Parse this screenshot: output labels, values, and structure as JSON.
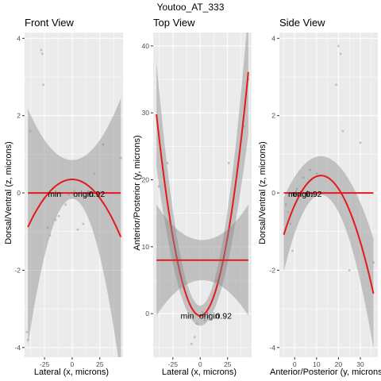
{
  "title": "Youtoo_AT_333",
  "colors": {
    "panel_bg": "#ebebeb",
    "grid": "#ffffff",
    "fit_line": "#e41a1c",
    "ribbon": "#8c8c8c",
    "points": "#9e9e9e",
    "text": "#000000",
    "axis_text": "#4d4d4d"
  },
  "chart_data": [
    {
      "type": "scatter",
      "title": "Front View",
      "xlabel": "Lateral (x, microns)",
      "ylabel": "Dorsal/Ventral (z, microns)",
      "xlim": [
        -43,
        46
      ],
      "ylim": [
        -4.25,
        4.15
      ],
      "xticks": [
        -25,
        0,
        25
      ],
      "yticks": [
        -4,
        -2,
        0,
        2,
        4
      ],
      "points": [
        [
          -28,
          3.7
        ],
        [
          -27,
          3.6
        ],
        [
          -26,
          2.8
        ],
        [
          -38,
          1.6
        ],
        [
          -41,
          -3.6
        ],
        [
          -40,
          -3.8
        ],
        [
          -22,
          -0.9
        ],
        [
          -15,
          -0.7
        ],
        [
          -12,
          -0.6
        ],
        [
          -6,
          -0.3
        ],
        [
          -3,
          -0.05
        ],
        [
          0,
          0.0
        ],
        [
          2,
          0.05
        ],
        [
          5,
          -0.95
        ],
        [
          10,
          -0.8
        ],
        [
          20,
          0.5
        ],
        [
          28,
          1.25
        ],
        [
          44,
          0.9
        ],
        [
          -20,
          -1.1
        ],
        [
          8,
          0.3
        ]
      ],
      "fits": [
        {
          "kind": "quadratic",
          "coef": [
            0.35,
            0,
            -0.00077
          ],
          "x_range": [
            -40,
            44
          ],
          "band": [
            0.5,
            0.0016
          ]
        },
        {
          "kind": "constant",
          "value": 0,
          "x_range": [
            -40,
            44
          ]
        }
      ],
      "annotations": [
        {
          "text": "min",
          "x": -22,
          "y": -0.02
        },
        {
          "text": "origin",
          "x": 1,
          "y": -0.02
        },
        {
          "text": "0.92",
          "x": 15,
          "y": -0.02
        }
      ]
    },
    {
      "type": "scatter",
      "title": "Top View",
      "xlabel": "Lateral (x, microns)",
      "ylabel": "Anterior/Posterior (y, microns)",
      "xlim": [
        -43,
        47
      ],
      "ylim": [
        -6.5,
        42
      ],
      "xticks": [
        -25,
        0,
        25
      ],
      "yticks": [
        0,
        10,
        20,
        30,
        40
      ],
      "points": [
        [
          -38,
          19
        ],
        [
          -30,
          22.5
        ],
        [
          -8,
          -4.5
        ],
        [
          -5,
          -3.5
        ],
        [
          -3,
          -1.5
        ],
        [
          0,
          -0.3
        ],
        [
          2,
          0.2
        ],
        [
          4,
          -1
        ],
        [
          26,
          22.5
        ],
        [
          40,
          28
        ],
        [
          44,
          35
        ],
        [
          -20,
          8
        ],
        [
          15,
          5
        ],
        [
          22,
          8.5
        ]
      ],
      "fits": [
        {
          "kind": "quadratic",
          "coef": [
            -0.3,
            0,
            0.0188
          ],
          "x_range": [
            -40,
            44
          ],
          "band": [
            1.5,
            0.004
          ]
        },
        {
          "kind": "constant",
          "value": 8,
          "x_range": [
            -40,
            44
          ],
          "band": [
            3,
            0.003
          ]
        }
      ],
      "annotations": [
        {
          "text": "min",
          "x": -18,
          "y": -0.3
        },
        {
          "text": "origin",
          "x": -1,
          "y": -0.3
        },
        {
          "text": "0.92",
          "x": 14,
          "y": -0.3
        }
      ]
    },
    {
      "type": "scatter",
      "title": "Side View",
      "xlabel": "Anterior/Posterior (y, microns)",
      "ylabel": "Dorsal/Ventral (z, microns)",
      "xlim": [
        -7,
        38
      ],
      "ylim": [
        -4.25,
        4.15
      ],
      "xticks": [
        0,
        10,
        20,
        30
      ],
      "yticks": [
        -4,
        -2,
        0,
        2,
        4
      ],
      "points": [
        [
          20,
          3.8
        ],
        [
          21,
          3.6
        ],
        [
          19,
          2.8
        ],
        [
          22,
          1.6
        ],
        [
          -4,
          -0.3
        ],
        [
          -3,
          -0.5
        ],
        [
          -2,
          -0.8
        ],
        [
          0,
          0.0
        ],
        [
          1,
          0.1
        ],
        [
          4,
          0.4
        ],
        [
          7,
          0.6
        ],
        [
          10,
          0.5
        ],
        [
          30,
          1.3
        ],
        [
          36,
          -1.8
        ],
        [
          -1,
          -1.5
        ],
        [
          25,
          -2.0
        ]
      ],
      "fits": [
        {
          "kind": "quadratic",
          "coef": [
            0.45,
            12,
            -0.0053
          ],
          "x_range": [
            -5,
            36
          ],
          "band": [
            0.5,
            0.0016
          ]
        },
        {
          "kind": "constant",
          "value": 0,
          "x_range": [
            -5,
            36
          ]
        }
      ],
      "annotations": [
        {
          "text": "min",
          "x": -3,
          "y": -0.02
        },
        {
          "text": "origin",
          "x": -1,
          "y": -0.02
        },
        {
          "text": "0.92",
          "x": 5,
          "y": -0.02
        }
      ]
    }
  ]
}
